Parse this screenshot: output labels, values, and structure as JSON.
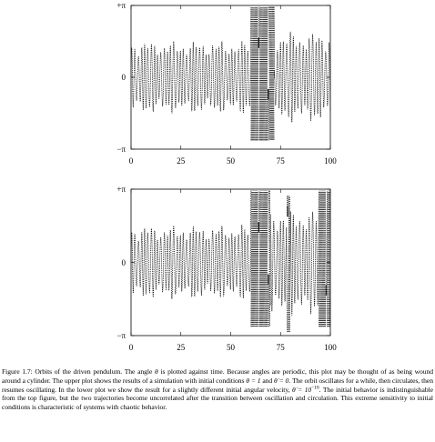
{
  "chart_data": [
    {
      "type": "line",
      "title": "",
      "xlabel": "",
      "ylabel": "",
      "xlim": [
        0,
        100
      ],
      "ylim": [
        -3.14159,
        3.14159
      ],
      "x_ticks": [
        "0",
        "25",
        "50",
        "75",
        "100"
      ],
      "y_ticks": [
        "−π",
        "0",
        "+π"
      ],
      "grid": false,
      "legend": "none",
      "style": "dotted",
      "series": [
        {
          "values": "theta(t): oscillates with amplitude ~1.6 rad for t in [0, 60]; circulates (many wraps across ±π) for t in [60, 72]; resumes oscillating, amplitude ~2.0 rad, for t in [72, 100]",
          "segments": [
            {
              "from": 0,
              "to": 60,
              "behavior": "oscillation",
              "amplitude": 1.6
            },
            {
              "from": 60,
              "to": 72,
              "behavior": "circulation"
            },
            {
              "from": 72,
              "to": 100,
              "behavior": "oscillation",
              "amplitude": 2.0
            }
          ]
        }
      ]
    },
    {
      "type": "line",
      "title": "",
      "xlabel": "",
      "ylabel": "",
      "xlim": [
        0,
        100
      ],
      "ylim": [
        -3.14159,
        3.14159
      ],
      "x_ticks": [
        "0",
        "25",
        "50",
        "75",
        "100"
      ],
      "y_ticks": [
        "−π",
        "0",
        "+π"
      ],
      "grid": false,
      "legend": "none",
      "style": "dotted",
      "series": [
        {
          "values": "theta(t): same as top plot until t≈60, then circulates in bursts at t≈61–70, 78–80 and 94–100 with oscillation in between",
          "segments": [
            {
              "from": 0,
              "to": 60,
              "behavior": "oscillation",
              "amplitude": 1.6
            },
            {
              "from": 60,
              "to": 70,
              "behavior": "circulation"
            },
            {
              "from": 70,
              "to": 78,
              "behavior": "oscillation",
              "amplitude": 2.3
            },
            {
              "from": 78,
              "to": 80,
              "behavior": "circulation"
            },
            {
              "from": 80,
              "to": 94,
              "behavior": "oscillation",
              "amplitude": 2.3
            },
            {
              "from": 94,
              "to": 100,
              "behavior": "circulation"
            }
          ]
        }
      ]
    }
  ],
  "caption": {
    "p1": "Figure 1.7: Orbits of the driven pendulum. The angle ",
    "theta": "θ",
    "p2": " is plotted against time. Because angles are periodic, this plot may be thought of as being wound around a cylinder. The upper plot shows the results of a simulation with initial conditions ",
    "ic1": "θ = 1",
    "and1": " and ",
    "ic2": "θ̇ = 0",
    "p3": ". The orbit oscillates for a while, then circulates, then resumes oscillating. In the lower plot we show the result for a slightly different initial angular velocity, ",
    "ic3": "θ̇ = 10",
    "exp": "−10",
    "p4": ". The initial behavior is indistinguishable from the top figure, but the two trajectories become uncorrelated after the transition between oscillation and circulation. This extreme sensitivity to initial conditions is characteristic of systems with chaotic behavior."
  }
}
